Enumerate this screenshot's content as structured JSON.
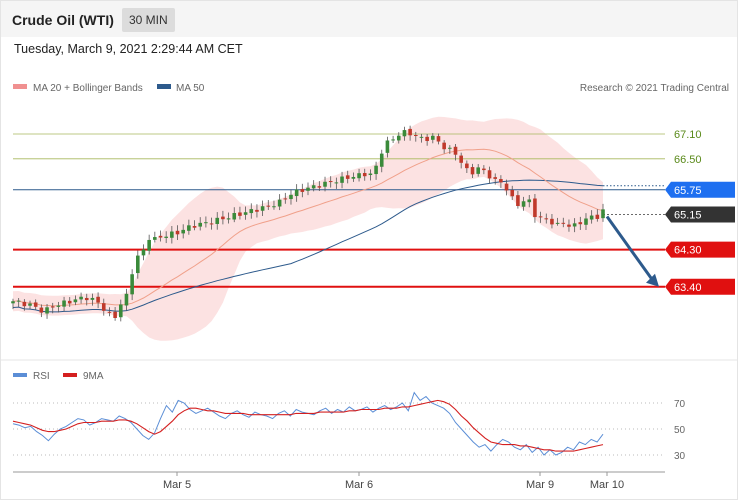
{
  "header": {
    "title": "Crude Oil (WTI)",
    "timeframe": "30 MIN",
    "timestamp": "Tuesday, March 9, 2021 2:29:44 AM CET"
  },
  "legend": {
    "ma20": "MA 20 + Bollinger Bands",
    "ma50": "MA 50",
    "credit": "Research © 2021 Trading Central",
    "rsi": "RSI",
    "rsi_ma": "9MA"
  },
  "colors": {
    "bollinger_fill": "#fbd6d6",
    "ma20": "#f0a08a",
    "ma50": "#2d5a8c",
    "bull_candle": "#3a8a3a",
    "bear_candle": "#c0392b",
    "resistance": "#a8b85c",
    "support": "#e01010",
    "current_price": "#333333",
    "pivot": "#1e6ff0",
    "rsi_line": "#5b8ed6",
    "rsi_ma_line": "#d42020",
    "arrow": "#2d5a8c"
  },
  "chart_data": [
    {
      "type": "candlestick",
      "x_ticks": [
        "Mar 5",
        "Mar 6",
        "Mar 9",
        "Mar 10"
      ],
      "ylim": [
        61.7,
        67.9
      ],
      "levels": [
        {
          "label": "67.10",
          "value": 67.1,
          "kind": "resistance"
        },
        {
          "label": "66.50",
          "value": 66.5,
          "kind": "resistance"
        },
        {
          "label": "65.75",
          "value": 65.75,
          "kind": "pivot"
        },
        {
          "label": "65.15",
          "value": 65.15,
          "kind": "last"
        },
        {
          "label": "64.30",
          "value": 64.3,
          "kind": "support"
        },
        {
          "label": "63.40",
          "value": 63.4,
          "kind": "support"
        }
      ],
      "forecast_arrow": {
        "from": 65.15,
        "to": 63.4
      }
    },
    {
      "type": "line",
      "name": "RSI",
      "ylim": [
        20,
        80
      ],
      "gridlines": [
        70,
        50,
        30
      ],
      "rsi": [
        54,
        53,
        51,
        52,
        48,
        45,
        41,
        46,
        50,
        52,
        55,
        58,
        57,
        53,
        55,
        58,
        57,
        56,
        60,
        58,
        55,
        50,
        45,
        42,
        47,
        58,
        68,
        63,
        72,
        70,
        65,
        62,
        64,
        66,
        63,
        60,
        58,
        62,
        64,
        61,
        59,
        63,
        61,
        60,
        58,
        62,
        64,
        60,
        65,
        63,
        62,
        61,
        64,
        66,
        62,
        65,
        63,
        67,
        64,
        65,
        67,
        63,
        66,
        68,
        65,
        67,
        70,
        64,
        78,
        72,
        75,
        70,
        68,
        66,
        62,
        55,
        50,
        45,
        40,
        36,
        38,
        33,
        38,
        42,
        40,
        36,
        34,
        38,
        32,
        36,
        30,
        34,
        30,
        32,
        36,
        34,
        40,
        38,
        42,
        40,
        46
      ],
      "rsi_ma": [
        56,
        55,
        54,
        53,
        51,
        49,
        48,
        48,
        49,
        50,
        52,
        54,
        55,
        55,
        55,
        56,
        56,
        56,
        57,
        57,
        56,
        54,
        51,
        48,
        46,
        48,
        52,
        56,
        61,
        64,
        66,
        66,
        65,
        64,
        64,
        63,
        62,
        62,
        62,
        62,
        61,
        61,
        61,
        61,
        61,
        61,
        61,
        61,
        62,
        62,
        62,
        62,
        63,
        63,
        63,
        63,
        63,
        64,
        64,
        65,
        65,
        65,
        65,
        66,
        66,
        66,
        67,
        67,
        68,
        69,
        70,
        71,
        72,
        71,
        69,
        65,
        60,
        56,
        51,
        47,
        43,
        40,
        39,
        38,
        38,
        38,
        37,
        37,
        36,
        35,
        34,
        34,
        33,
        33,
        33,
        33,
        34,
        35,
        36,
        37,
        38
      ]
    }
  ],
  "rsi_labels": [
    "70",
    "50",
    "30"
  ]
}
